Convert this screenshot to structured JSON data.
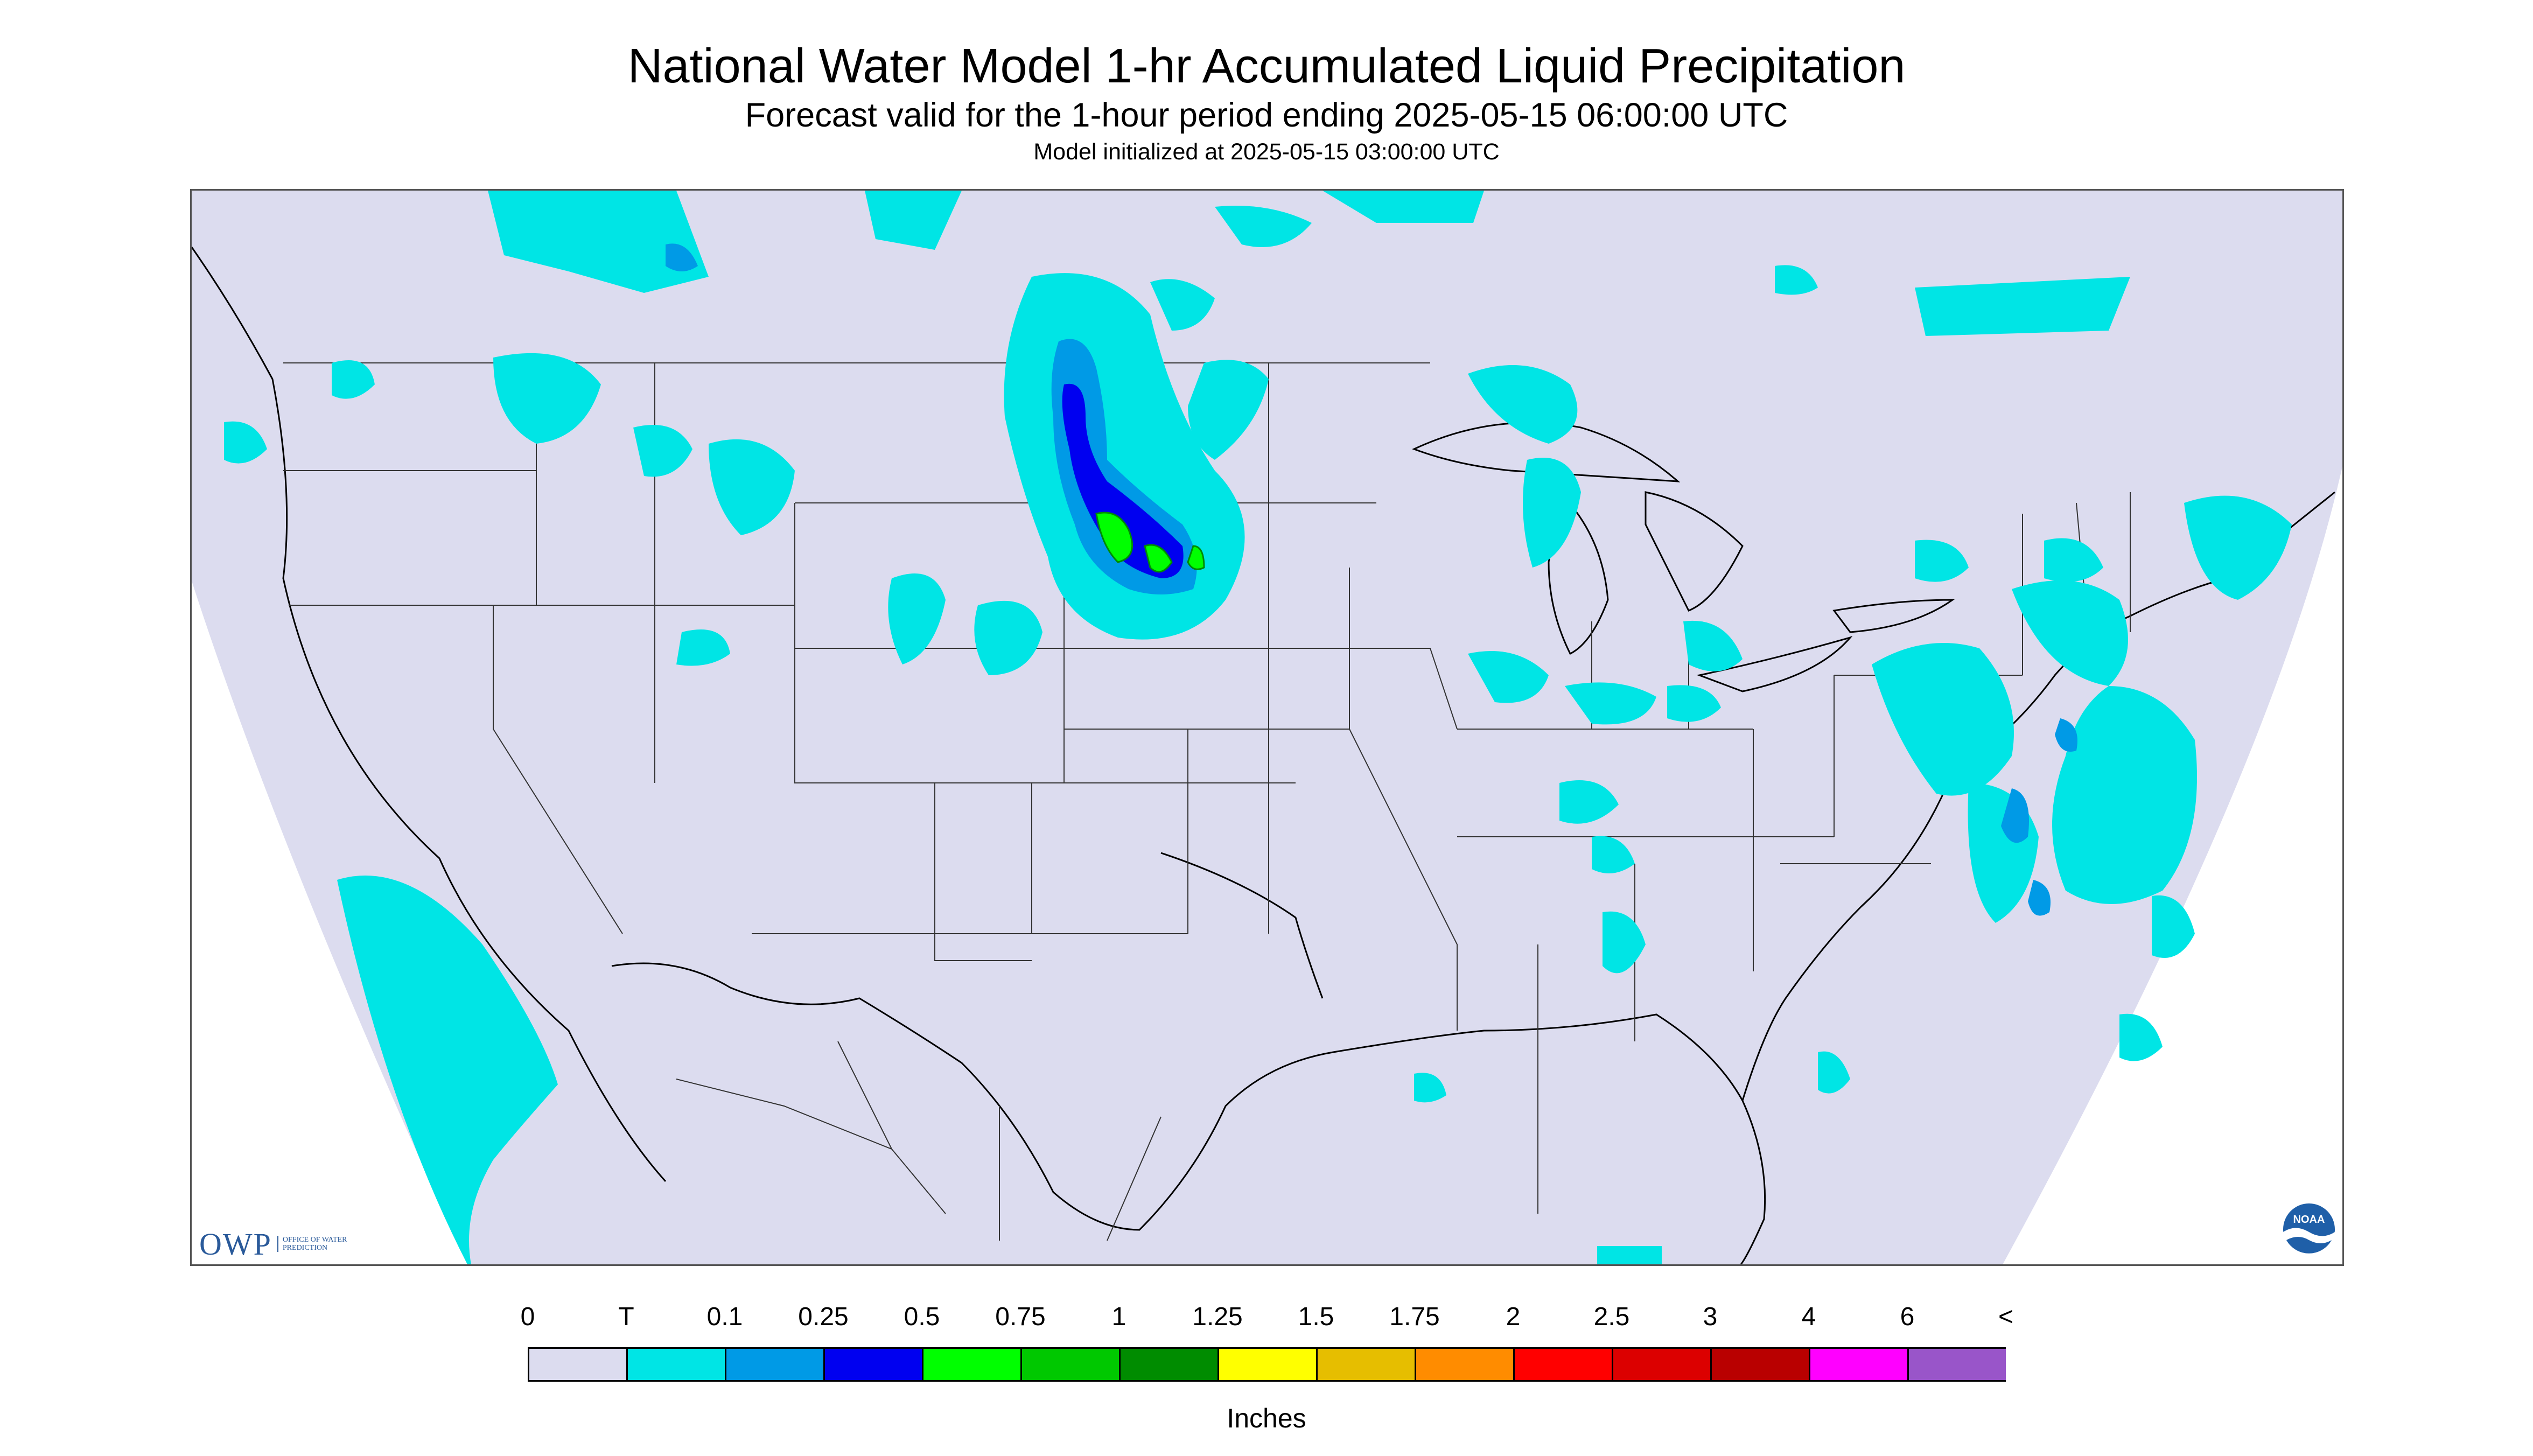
{
  "header": {
    "title": "National Water Model 1-hr Accumulated Liquid Precipitation",
    "subtitle": "Forecast valid for the 1-hour period ending 2025-05-15 06:00:00 UTC",
    "init_line": "Model initialized at 2025-05-15 03:00:00 UTC"
  },
  "logos": {
    "owp_text": "OWP",
    "owp_subtitle": "OFFICE OF WATER PREDICTION",
    "noaa_text": "NOAA"
  },
  "legend": {
    "unit_label": "Inches",
    "tick_labels": [
      "0",
      "T",
      "0.1",
      "0.25",
      "0.5",
      "0.75",
      "1",
      "1.25",
      "1.5",
      "1.75",
      "2",
      "2.5",
      "3",
      "4",
      "6",
      "<"
    ],
    "colors": [
      "#dcdcef",
      "#00e5e5",
      "#009ae6",
      "#0000f0",
      "#00ff00",
      "#00c800",
      "#008c00",
      "#ffff00",
      "#e6be00",
      "#ff8c00",
      "#ff0000",
      "#dc0000",
      "#b90000",
      "#ff00ff",
      "#9955c9"
    ]
  },
  "map": {
    "domain_fill": "#dcdcef",
    "precip_colors": {
      "trace": "#00e5e5",
      "light": "#009ae6",
      "moderate": "#0000f0",
      "heavy": "#00ff00",
      "heavier": "#00c800"
    }
  }
}
